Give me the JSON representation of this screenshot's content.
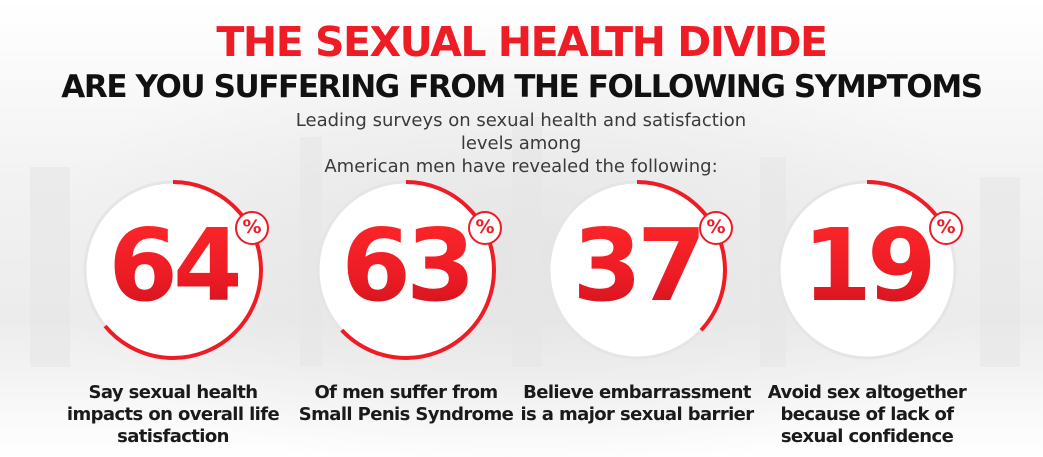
{
  "header": {
    "title": "THE SEXUAL HEALTH DIVIDE",
    "subtitle": "ARE YOU SUFFERING FROM THE FOLLOWING SYMPTOMS",
    "intro_line1": "Leading surveys on sexual health and satisfaction levels among",
    "intro_line2": "American men have revealed the following:"
  },
  "stats": [
    {
      "value": "64",
      "percent_sign": "%",
      "fraction": 0.64,
      "caption": "Say sexual health impacts on overall life satisfaction"
    },
    {
      "value": "63",
      "percent_sign": "%",
      "fraction": 0.63,
      "caption": "Of men suffer from Small Penis Syndrome"
    },
    {
      "value": "37",
      "percent_sign": "%",
      "fraction": 0.37,
      "caption": "Believe embarrassment is a major sexual barrier"
    },
    {
      "value": "19",
      "percent_sign": "%",
      "fraction": 0.19,
      "caption": "Avoid sex altogether because of lack of sexual confidence"
    }
  ],
  "colors": {
    "accent": "#ee1c25",
    "text_dark": "#111111",
    "ring_track": "#e5e5e5"
  }
}
